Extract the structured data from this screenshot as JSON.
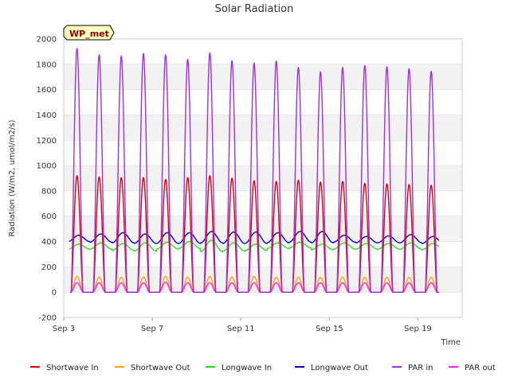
{
  "chart_data": {
    "type": "line",
    "title": "Solar Radiation",
    "xlabel": "Time",
    "ylabel": "Radiation (W/m2, umol/m2/s)",
    "station_label": "WP_met",
    "ylim": [
      -200,
      2000
    ],
    "yticks": [
      -200,
      0,
      200,
      400,
      600,
      800,
      1000,
      1200,
      1400,
      1600,
      1800,
      2000
    ],
    "xlim": [
      3.0,
      21.0
    ],
    "xticks": [
      {
        "value": 3,
        "label": "Sep 3"
      },
      {
        "value": 7,
        "label": "Sep 7"
      },
      {
        "value": 11,
        "label": "Sep 11"
      },
      {
        "value": 15,
        "label": "Sep 15"
      },
      {
        "value": 19,
        "label": "Sep 19"
      }
    ],
    "grid": "horizontal bands",
    "legend_position": "bottom",
    "day_start": 3,
    "noon_days": [
      3.6,
      4.6,
      5.6,
      6.6,
      7.6,
      8.6,
      9.6,
      10.6,
      11.6,
      12.6,
      13.6,
      14.6,
      15.6,
      16.6,
      17.6,
      18.6,
      19.6
    ],
    "series": [
      {
        "name": "Shortwave In",
        "color": "#dd0000",
        "kind": "diurnal",
        "peaks": [
          920,
          910,
          905,
          905,
          890,
          905,
          920,
          900,
          880,
          875,
          885,
          870,
          875,
          860,
          855,
          850,
          845
        ]
      },
      {
        "name": "Shortwave Out",
        "color": "#ffa500",
        "kind": "diurnal",
        "peaks": [
          125,
          120,
          118,
          120,
          125,
          118,
          125,
          122,
          125,
          118,
          120,
          118,
          120,
          118,
          118,
          118,
          118
        ]
      },
      {
        "name": "Longwave In",
        "color": "#22dd22",
        "kind": "longwave",
        "night": [
          340,
          340,
          330,
          325,
          340,
          345,
          320,
          325,
          330,
          345,
          350,
          335,
          340,
          340,
          340,
          340,
          335
        ],
        "day": [
          380,
          390,
          385,
          390,
          395,
          400,
          410,
          390,
          380,
          390,
          395,
          380,
          390,
          385,
          385,
          390,
          385
        ]
      },
      {
        "name": "Longwave Out",
        "color": "#0000cc",
        "kind": "longwave",
        "night": [
          400,
          395,
          390,
          385,
          385,
          385,
          390,
          385,
          385,
          390,
          395,
          390,
          395,
          390,
          390,
          390,
          385
        ],
        "day": [
          450,
          460,
          470,
          460,
          470,
          470,
          480,
          475,
          475,
          470,
          480,
          480,
          450,
          440,
          445,
          455,
          440
        ]
      },
      {
        "name": "PAR in",
        "color": "#a030e0",
        "kind": "diurnal",
        "peaks": [
          1925,
          1875,
          1865,
          1885,
          1875,
          1840,
          1890,
          1830,
          1810,
          1825,
          1775,
          1740,
          1775,
          1790,
          1780,
          1765,
          1745
        ]
      },
      {
        "name": "PAR out",
        "color": "#ff20ff",
        "kind": "diurnal",
        "peaks": [
          75,
          75,
          75,
          75,
          80,
          75,
          75,
          75,
          75,
          75,
          75,
          75,
          75,
          75,
          75,
          75,
          75
        ]
      }
    ]
  }
}
